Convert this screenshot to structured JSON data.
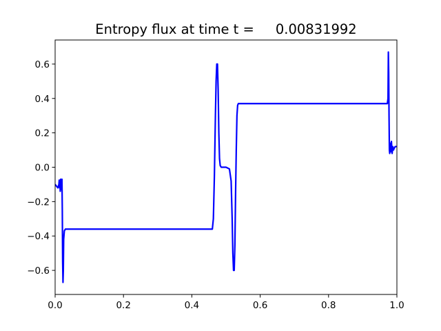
{
  "chart_data": {
    "type": "line",
    "title": "Entropy flux at time t =     0.00831992",
    "xlabel": "",
    "ylabel": "",
    "xlim": [
      0.0,
      1.0
    ],
    "ylim": [
      -0.74,
      0.74
    ],
    "grid": false,
    "x_ticks": [
      0.0,
      0.2,
      0.4,
      0.6,
      0.8,
      1.0
    ],
    "x_tick_labels": [
      "0.0",
      "0.2",
      "0.4",
      "0.6",
      "0.8",
      "1.0"
    ],
    "y_ticks": [
      -0.6,
      -0.4,
      -0.2,
      0.0,
      0.2,
      0.4,
      0.6
    ],
    "y_tick_labels": [
      "−0.6",
      "−0.4",
      "−0.2",
      "0.0",
      "0.2",
      "0.4",
      "0.6"
    ],
    "series": [
      {
        "color": "#0000ff",
        "x": [
          0.0,
          0.004,
          0.008,
          0.011,
          0.012,
          0.013,
          0.014,
          0.015,
          0.016,
          0.017,
          0.018,
          0.019,
          0.02,
          0.021,
          0.022,
          0.023,
          0.024,
          0.025,
          0.027,
          0.03,
          0.035,
          0.05,
          0.1,
          0.2,
          0.3,
          0.4,
          0.455,
          0.46,
          0.463,
          0.466,
          0.469,
          0.471,
          0.473,
          0.475,
          0.477,
          0.479,
          0.481,
          0.483,
          0.486,
          0.49,
          0.5,
          0.51,
          0.515,
          0.518,
          0.52,
          0.522,
          0.524,
          0.526,
          0.528,
          0.53,
          0.532,
          0.534,
          0.536,
          0.538,
          0.54,
          0.55,
          0.6,
          0.7,
          0.8,
          0.9,
          0.95,
          0.97,
          0.972,
          0.974,
          0.975,
          0.976,
          0.977,
          0.978,
          0.979,
          0.98,
          0.982,
          0.984,
          0.986,
          0.988,
          0.99,
          0.992,
          0.995,
          1.0
        ],
        "y": [
          -0.1,
          -0.11,
          -0.12,
          -0.1,
          -0.075,
          -0.12,
          -0.08,
          -0.14,
          -0.07,
          -0.13,
          -0.07,
          -0.12,
          -0.07,
          -0.25,
          -0.55,
          -0.67,
          -0.6,
          -0.42,
          -0.37,
          -0.36,
          -0.36,
          -0.36,
          -0.36,
          -0.36,
          -0.36,
          -0.36,
          -0.36,
          -0.36,
          -0.3,
          -0.05,
          0.3,
          0.5,
          0.6,
          0.6,
          0.45,
          0.2,
          0.05,
          0.01,
          0.0,
          0.0,
          0.0,
          -0.01,
          -0.08,
          -0.3,
          -0.5,
          -0.6,
          -0.6,
          -0.45,
          -0.15,
          0.1,
          0.3,
          0.36,
          0.37,
          0.37,
          0.37,
          0.37,
          0.37,
          0.37,
          0.37,
          0.37,
          0.37,
          0.37,
          0.37,
          0.4,
          0.67,
          0.55,
          0.3,
          0.1,
          0.08,
          0.14,
          0.09,
          0.15,
          0.08,
          0.12,
          0.1,
          0.11,
          0.12,
          0.12
        ]
      }
    ]
  }
}
